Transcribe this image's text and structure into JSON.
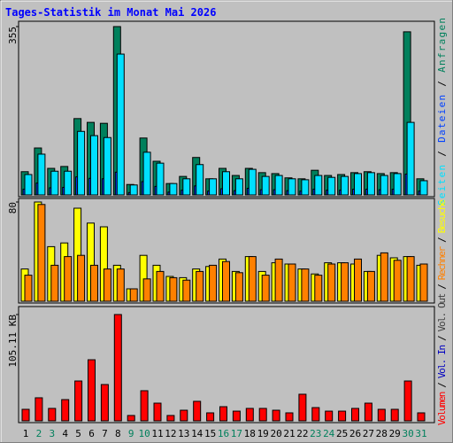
{
  "chart_data": [
    {
      "type": "bar",
      "title": "Tages-Statistik im Monat Mai 2026",
      "ylim": [
        0,
        355
      ],
      "yticks": [
        355
      ],
      "legend_separator": " / ",
      "series": [
        {
          "name": "Anfragen",
          "color": "#00805c",
          "values": [
            49,
            99,
            56,
            60,
            161,
            153,
            151,
            355,
            22,
            120,
            71,
            24,
            39,
            79,
            34,
            56,
            41,
            56,
            47,
            45,
            36,
            34,
            52,
            41,
            43,
            47,
            49,
            45,
            47,
            344,
            34
          ]
        },
        {
          "name": "Dateien",
          "color": "#0040ff",
          "values": [
            12,
            25,
            15,
            16,
            38,
            35,
            34,
            48,
            5,
            28,
            18,
            6,
            10,
            19,
            8,
            13,
            9,
            14,
            11,
            11,
            9,
            8,
            12,
            10,
            10,
            12,
            12,
            11,
            12,
            44,
            8
          ]
        },
        {
          "name": "Seiten",
          "color": "#00e0ff",
          "values": [
            43,
            86,
            50,
            50,
            134,
            125,
            121,
            297,
            21,
            90,
            67,
            24,
            34,
            64,
            34,
            49,
            34,
            54,
            39,
            41,
            34,
            32,
            41,
            37,
            39,
            45,
            47,
            41,
            45,
            153,
            30
          ]
        }
      ]
    },
    {
      "type": "bar",
      "ylim": [
        0,
        80
      ],
      "yticks": [
        80
      ],
      "series": [
        {
          "name": "Besuche",
          "color": "#ffff00",
          "values": [
            26,
            80,
            44,
            47,
            75,
            63,
            60,
            29,
            10,
            37,
            29,
            20,
            19,
            26,
            28,
            34,
            24,
            36,
            24,
            31,
            30,
            26,
            22,
            31,
            31,
            30,
            24,
            37,
            35,
            36,
            29
          ]
        },
        {
          "name": "Rechner",
          "color": "#ff8000",
          "values": [
            21,
            78,
            29,
            36,
            37,
            29,
            26,
            26,
            10,
            18,
            24,
            19,
            17,
            24,
            29,
            32,
            23,
            36,
            21,
            34,
            30,
            26,
            21,
            30,
            31,
            34,
            24,
            39,
            33,
            36,
            30
          ]
        }
      ]
    },
    {
      "type": "bar",
      "ylim": [
        0,
        105.11
      ],
      "yticks": [
        {
          "value": 105.11,
          "label": "105.11 KB"
        }
      ],
      "legend_separator": " / ",
      "series": [
        {
          "name": "Volumen",
          "color": "#ff0000",
          "values": [
            11.4,
            22.8,
            12.3,
            21.0,
            39.4,
            60.4,
            35.9,
            105.11,
            5.3,
            29.8,
            17.5,
            5.3,
            10.5,
            19.3,
            7.9,
            14.0,
            9.6,
            12.3,
            12.3,
            10.5,
            7.9,
            26.3,
            13.1,
            9.6,
            9.6,
            12.3,
            17.5,
            11.4,
            11.4,
            39.4,
            7.9
          ]
        }
      ],
      "legend_extra": [
        {
          "name": "Vol. In",
          "color": "#0000c0"
        },
        {
          "name": "Vol. Out",
          "color": "#404040"
        }
      ],
      "categories": [
        "1",
        "2",
        "3",
        "4",
        "5",
        "6",
        "7",
        "8",
        "9",
        "10",
        "11",
        "12",
        "13",
        "14",
        "15",
        "16",
        "17",
        "18",
        "19",
        "20",
        "21",
        "22",
        "23",
        "24",
        "25",
        "26",
        "27",
        "28",
        "29",
        "30",
        "31"
      ],
      "category_colors": [
        "#000000",
        "#00805c",
        "#00805c",
        "#000000",
        "#000000",
        "#000000",
        "#000000",
        "#000000",
        "#00805c",
        "#00805c",
        "#000000",
        "#000000",
        "#000000",
        "#000000",
        "#000000",
        "#00805c",
        "#00805c",
        "#000000",
        "#000000",
        "#000000",
        "#000000",
        "#000000",
        "#00805c",
        "#00805c",
        "#000000",
        "#000000",
        "#000000",
        "#000000",
        "#000000",
        "#00805c",
        "#00805c"
      ]
    }
  ]
}
